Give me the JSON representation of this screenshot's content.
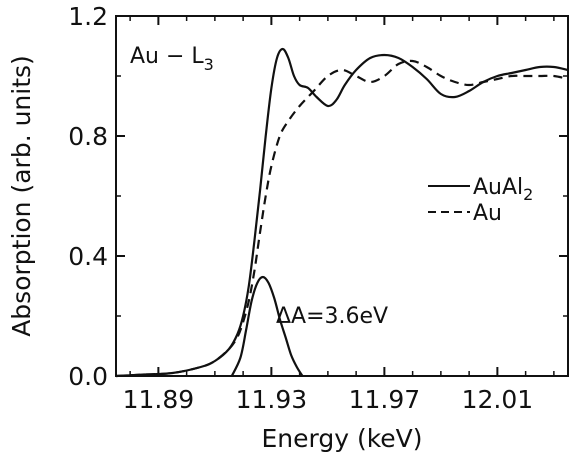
{
  "chart_data": {
    "type": "line",
    "xlabel": "Energy (keV)",
    "ylabel": "Absorption (arb. units)",
    "xlim": [
      11.875,
      12.035
    ],
    "ylim": [
      0.0,
      1.2
    ],
    "xticks": [
      11.89,
      11.93,
      11.97,
      12.01
    ],
    "xtick_labels": [
      "11.89",
      "11.93",
      "11.97",
      "12.01"
    ],
    "yticks": [
      0.0,
      0.4,
      0.8,
      1.2
    ],
    "ytick_labels": [
      "0.0",
      "0.4",
      "0.8",
      "1.2"
    ],
    "grid": false,
    "legend_position": "right",
    "annotations": {
      "edge": "Au − L",
      "edge_subscript": "3",
      "delta": "ΔA=3.6eV"
    },
    "series": [
      {
        "name": "AuAl",
        "name_subscript": "2",
        "style": "solid",
        "x": [
          11.875,
          11.885,
          11.895,
          11.905,
          11.91,
          11.915,
          11.918,
          11.92,
          11.922,
          11.924,
          11.926,
          11.928,
          11.93,
          11.932,
          11.934,
          11.936,
          11.938,
          11.94,
          11.943,
          11.946,
          11.95,
          11.953,
          11.956,
          11.96,
          11.965,
          11.97,
          11.975,
          11.98,
          11.985,
          11.99,
          11.995,
          12.0,
          12.005,
          12.01,
          12.015,
          12.02,
          12.025,
          12.03,
          12.035
        ],
        "y": [
          0.0,
          0.005,
          0.01,
          0.03,
          0.05,
          0.09,
          0.14,
          0.2,
          0.3,
          0.45,
          0.62,
          0.8,
          0.96,
          1.06,
          1.09,
          1.06,
          1.0,
          0.97,
          0.96,
          0.93,
          0.9,
          0.92,
          0.97,
          1.02,
          1.06,
          1.07,
          1.06,
          1.03,
          0.99,
          0.94,
          0.93,
          0.95,
          0.98,
          1.0,
          1.01,
          1.02,
          1.03,
          1.03,
          1.02
        ]
      },
      {
        "name": "Au",
        "style": "dashed",
        "x": [
          11.875,
          11.885,
          11.895,
          11.905,
          11.91,
          11.915,
          11.918,
          11.92,
          11.922,
          11.924,
          11.926,
          11.928,
          11.93,
          11.933,
          11.936,
          11.94,
          11.945,
          11.95,
          11.955,
          11.96,
          11.965,
          11.97,
          11.975,
          11.98,
          11.985,
          11.99,
          11.995,
          12.0,
          12.005,
          12.01,
          12.015,
          12.02,
          12.025,
          12.03,
          12.035
        ],
        "y": [
          0.0,
          0.005,
          0.01,
          0.03,
          0.05,
          0.09,
          0.13,
          0.18,
          0.25,
          0.35,
          0.48,
          0.6,
          0.7,
          0.8,
          0.85,
          0.9,
          0.95,
          1.0,
          1.02,
          1.0,
          0.98,
          1.0,
          1.04,
          1.05,
          1.03,
          1.0,
          0.98,
          0.97,
          0.98,
          0.99,
          1.0,
          1.0,
          1.0,
          1.0,
          0.99
        ]
      },
      {
        "name": "",
        "style": "solid",
        "x": [
          11.916,
          11.919,
          11.921,
          11.923,
          11.925,
          11.927,
          11.929,
          11.931,
          11.933,
          11.935,
          11.937,
          11.939,
          11.941
        ],
        "y": [
          0.0,
          0.06,
          0.15,
          0.25,
          0.31,
          0.33,
          0.31,
          0.26,
          0.19,
          0.13,
          0.07,
          0.03,
          0.0
        ]
      }
    ]
  }
}
